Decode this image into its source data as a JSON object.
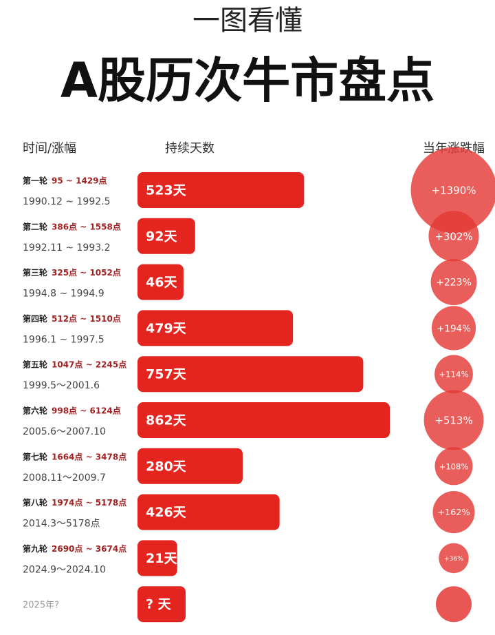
{
  "chart_data": {
    "type": "bar",
    "supertitle": "一图看懂",
    "title": "A股历次牛市盘点",
    "column_headers": [
      "时间/涨幅",
      "持续天数",
      "当年涨跌幅"
    ],
    "categories": [
      "第一轮",
      "第二轮",
      "第三轮",
      "第四轮",
      "第五轮",
      "第六轮",
      "第七轮",
      "第八轮",
      "第九轮",
      "2025年?"
    ],
    "ranges": [
      "95 ~ 1429点",
      "386点 ~ 1558点",
      "325点 ~ 1052点",
      "512点 ~ 1510点",
      "1047点 ~ 2245点",
      "998点 ~ 6124点",
      "1664点 ~ 3478点",
      "1974点 ~ 5178点",
      "2690点 ~ 3674点",
      null
    ],
    "periods": [
      "1990.12 ~ 1992.5",
      "1992.11 ~ 1993.2",
      "1994.8 ~ 1994.9",
      "1996.1 ~ 1997.5",
      "1999.5～2001.6",
      "2005.6～2007.10",
      "2008.11～2009.7",
      "2014.3～5178点",
      "2024.9～2024.10",
      null
    ],
    "values": [
      523,
      92,
      46,
      479,
      757,
      862,
      280,
      426,
      21,
      null
    ],
    "value_labels": [
      "523天",
      "92天",
      "46天",
      "479天",
      "757天",
      "862天",
      "280天",
      "426天",
      "21天",
      "? 天"
    ],
    "color": "#e3241f",
    "gains": [
      1390,
      302,
      223,
      194,
      114,
      513,
      108,
      162,
      36,
      null
    ],
    "gain_labels": [
      "+1390%",
      "+302%",
      "+223%",
      "+194%",
      "+114%",
      "+513%",
      "+108%",
      "+162%",
      "+36%",
      null
    ],
    "gain_color": "#e43a36"
  }
}
